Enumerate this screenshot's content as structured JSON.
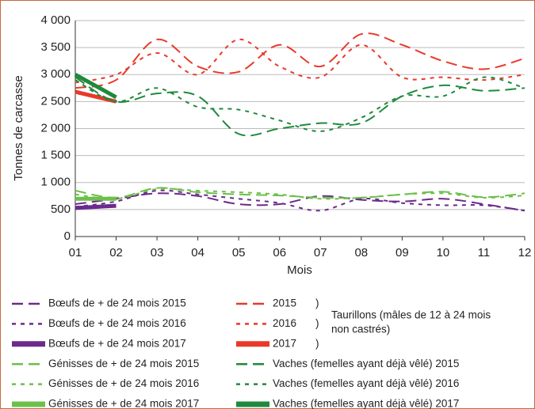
{
  "chart_data": {
    "type": "line",
    "y_label": "Tonnes de carcasse",
    "x_label": "Mois",
    "categories": [
      "01",
      "02",
      "03",
      "04",
      "05",
      "06",
      "07",
      "08",
      "09",
      "10",
      "11",
      "12"
    ],
    "ylim": [
      0,
      4000
    ],
    "yticks": [
      0,
      500,
      {
        "value": 1000,
        "label": "1 000"
      },
      {
        "value": 1500,
        "label": "1 500"
      },
      {
        "value": 2000,
        "label": "2 000"
      },
      {
        "value": 2500,
        "label": "2 500"
      },
      {
        "value": 3000,
        "label": "3 000"
      },
      {
        "value": 3500,
        "label": "3 500"
      },
      {
        "value": 4000,
        "label": "4 000"
      }
    ],
    "grid": true,
    "legend_note": {
      "bracket": ")",
      "lines": [
        "Taurillons (mâles de 12 à 24 mois",
        "non castrés)"
      ]
    },
    "series": [
      {
        "name": "Bœufs de + de 24 mois 2015",
        "color": "#6b2a8c",
        "style": "long-dash",
        "values": [
          600,
          700,
          800,
          750,
          600,
          600,
          750,
          680,
          650,
          700,
          600,
          480
        ]
      },
      {
        "name": "Bœufs de + de 24 mois 2016",
        "color": "#6b2a8c",
        "style": "short-dash",
        "values": [
          550,
          650,
          850,
          780,
          700,
          620,
          480,
          700,
          620,
          580,
          580,
          480
        ]
      },
      {
        "name": "Bœufs de + de 24 mois 2017",
        "color": "#6b2a8c",
        "style": "solid",
        "values": [
          530,
          570,
          null,
          null,
          null,
          null,
          null,
          null,
          null,
          null,
          null,
          null
        ]
      },
      {
        "name": "Génisses de + de 24 mois 2015",
        "color": "#6cc04a",
        "style": "long-dash",
        "values": [
          850,
          720,
          900,
          820,
          780,
          760,
          720,
          720,
          780,
          830,
          730,
          800
        ]
      },
      {
        "name": "Génisses de + de 24 mois 2016",
        "color": "#6cc04a",
        "style": "short-dash",
        "values": [
          780,
          700,
          880,
          850,
          820,
          780,
          700,
          720,
          780,
          800,
          720,
          760
        ]
      },
      {
        "name": "Génisses de + de 24 mois 2017",
        "color": "#6cc04a",
        "style": "solid",
        "values": [
          700,
          700,
          null,
          null,
          null,
          null,
          null,
          null,
          null,
          null,
          null,
          null
        ]
      },
      {
        "name": "2015",
        "color": "#e8392a",
        "style": "long-dash",
        "values": [
          2750,
          2900,
          3650,
          3150,
          3050,
          3550,
          3150,
          3750,
          3550,
          3250,
          3100,
          3300
        ]
      },
      {
        "name": "2016",
        "color": "#e8392a",
        "style": "short-dash",
        "values": [
          2850,
          3000,
          3400,
          3000,
          3650,
          3150,
          2950,
          3550,
          2950,
          2950,
          2900,
          3000
        ]
      },
      {
        "name": "2017",
        "color": "#e8392a",
        "style": "solid",
        "values": [
          2680,
          2500,
          null,
          null,
          null,
          null,
          null,
          null,
          null,
          null,
          null,
          null
        ]
      },
      {
        "name": "Vaches (femelles ayant déjà vêlé) 2015",
        "color": "#1e8a3c",
        "style": "long-dash",
        "values": [
          2950,
          2500,
          2650,
          2600,
          1900,
          2000,
          2100,
          2100,
          2600,
          2800,
          2700,
          2750
        ]
      },
      {
        "name": "Vaches (femelles ayant déjà vêlé) 2016",
        "color": "#1e8a3c",
        "style": "short-dash",
        "values": [
          2900,
          2500,
          2750,
          2400,
          2350,
          2150,
          1950,
          2200,
          2600,
          2600,
          2950,
          2750
        ]
      },
      {
        "name": "Vaches (femelles ayant déjà vêlé) 2017",
        "color": "#1e8a3c",
        "style": "solid",
        "values": [
          3000,
          2580,
          null,
          null,
          null,
          null,
          null,
          null,
          null,
          null,
          null,
          null
        ]
      }
    ]
  }
}
